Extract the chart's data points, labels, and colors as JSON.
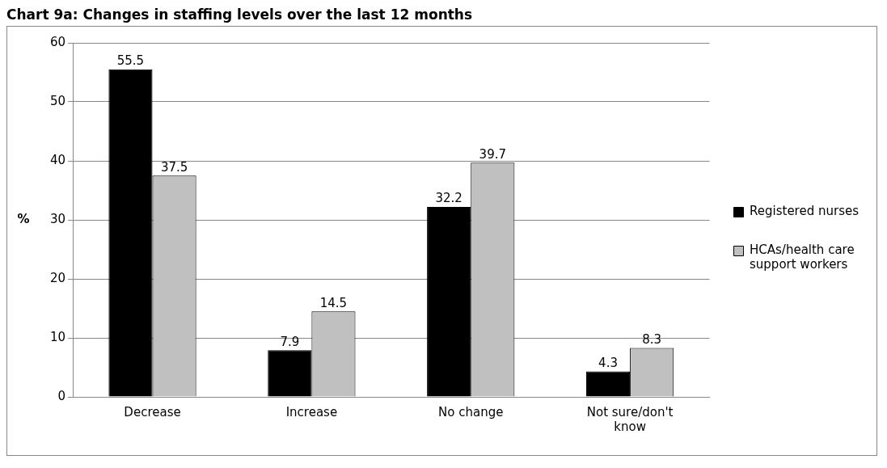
{
  "chart_data": {
    "type": "bar",
    "title": "Chart 9a: Changes in staffing levels over the last 12 months",
    "ylabel": "%",
    "categories": [
      "Decrease",
      "Increase",
      "No change",
      "Not sure/don't know"
    ],
    "series": [
      {
        "name": "Registered nurses",
        "color": "#000000",
        "values": [
          55.5,
          7.9,
          32.2,
          4.3
        ]
      },
      {
        "name": "HCAs/health care support workers",
        "color": "#c0c0c0",
        "values": [
          37.5,
          14.5,
          39.7,
          8.3
        ]
      }
    ],
    "ylim": [
      0,
      60
    ],
    "yticks": [
      0,
      10,
      20,
      30,
      40,
      50,
      60
    ],
    "grid": "y",
    "legend": "right",
    "data_labels": true
  }
}
